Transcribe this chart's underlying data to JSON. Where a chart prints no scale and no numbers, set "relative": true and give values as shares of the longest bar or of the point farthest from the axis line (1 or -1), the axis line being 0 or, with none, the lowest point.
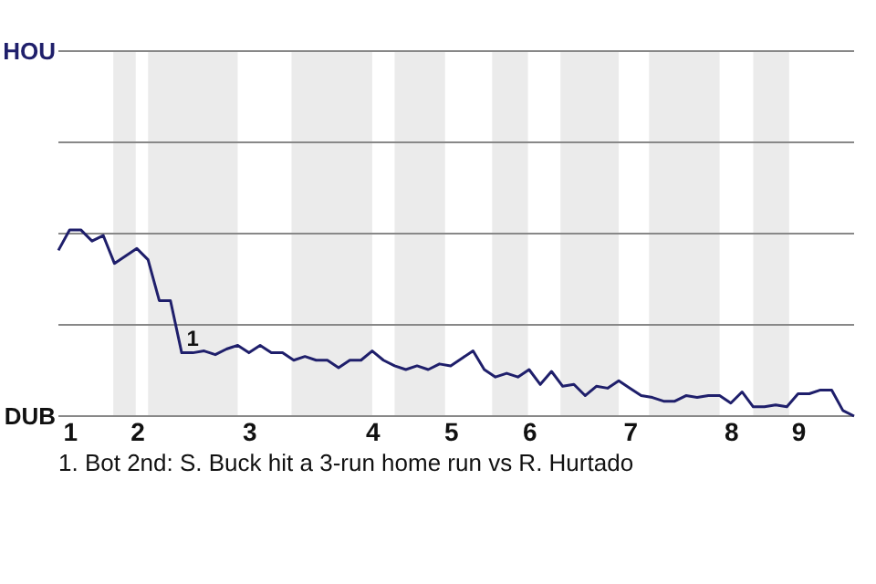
{
  "chart_data": {
    "type": "line",
    "relative": true,
    "categories": [
      null,
      "1",
      null,
      null,
      null,
      null,
      null,
      "2",
      null,
      null,
      null,
      null,
      null,
      null,
      null,
      null,
      null,
      "3",
      null,
      null,
      null,
      null,
      null,
      null,
      null,
      null,
      null,
      null,
      "4",
      null,
      null,
      null,
      null,
      null,
      null,
      "5",
      null,
      null,
      null,
      null,
      null,
      null,
      "6",
      null,
      null,
      null,
      null,
      null,
      null,
      null,
      null,
      "7",
      null,
      null,
      null,
      null,
      null,
      null,
      null,
      null,
      "8",
      null,
      null,
      null,
      null,
      null,
      "9",
      null,
      null,
      null,
      null,
      null
    ],
    "series": [
      {
        "color": "#1f1f6b",
        "values": [
          0.89,
          1,
          1,
          0.94,
          0.97,
          0.82,
          0.86,
          0.9,
          0.84,
          0.62,
          0.62,
          0.34,
          0.34,
          0.35,
          0.33,
          0.36,
          0.38,
          0.34,
          0.38,
          0.34,
          0.34,
          0.3,
          0.32,
          0.3,
          0.3,
          0.26,
          0.3,
          0.3,
          0.35,
          0.3,
          0.27,
          0.25,
          0.27,
          0.25,
          0.28,
          0.27,
          0.31,
          0.35,
          0.25,
          0.21,
          0.23,
          0.21,
          0.25,
          0.17,
          0.24,
          0.16,
          0.17,
          0.11,
          0.16,
          0.15,
          0.19,
          0.15,
          0.11,
          0.1,
          0.08,
          0.08,
          0.11,
          0.1,
          0.11,
          0.11,
          0.07,
          0.13,
          0.05,
          0.05,
          0.06,
          0.05,
          0.12,
          0.12,
          0.14,
          0.14,
          0.03,
          0
        ]
      }
    ],
    "ref_lines": [
      {
        "axis": "y",
        "value": 0.49
      }
    ],
    "annotations": [
      "HOU",
      "DUB",
      {
        "text": "1",
        "y": 0.34
      },
      "1. Bot 2nd: S. Buck hit a 3-run home run vs R. Hurtado"
    ]
  }
}
